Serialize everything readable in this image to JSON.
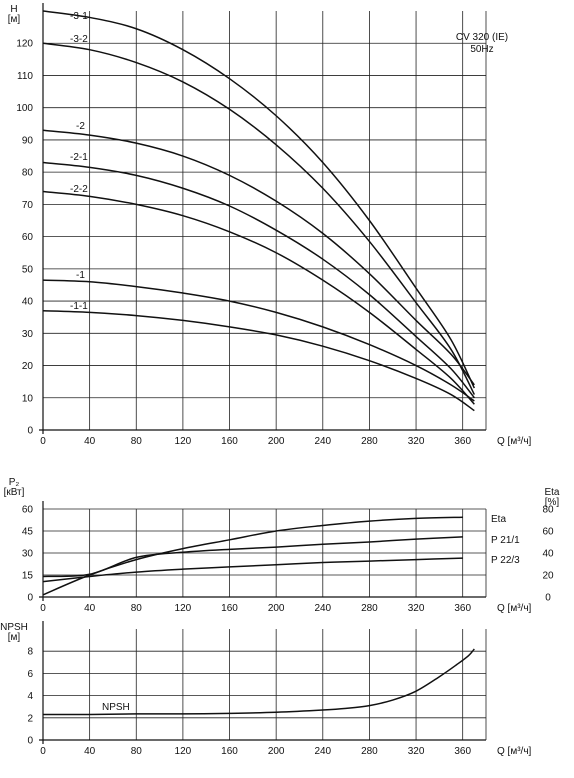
{
  "chart_data": [
    {
      "type": "line",
      "ylabel": "H",
      "yunit": "[м]",
      "xlabel": "Q",
      "xunit": "[м³/ч]",
      "info_lines": [
        "CV 320 (IE)",
        "50Hz"
      ],
      "xlim": [
        0,
        380
      ],
      "ylim": [
        0,
        130
      ],
      "xticks": [
        0,
        40,
        80,
        120,
        160,
        200,
        240,
        280,
        320,
        360
      ],
      "yticks": [
        0,
        10,
        20,
        30,
        40,
        50,
        60,
        70,
        80,
        90,
        100,
        110,
        120
      ],
      "grid": true,
      "series": [
        {
          "name": "-3-1",
          "x": [
            0,
            40,
            80,
            120,
            160,
            200,
            240,
            280,
            320,
            350,
            370
          ],
          "y": [
            130,
            128,
            124.5,
            118,
            109,
            97.5,
            83,
            65,
            44,
            28,
            13
          ]
        },
        {
          "name": "-3-2",
          "x": [
            0,
            40,
            80,
            120,
            160,
            200,
            240,
            280,
            320,
            350,
            370
          ],
          "y": [
            120,
            118,
            114,
            108,
            99.5,
            88.5,
            75,
            58.5,
            39.5,
            25,
            11
          ]
        },
        {
          "name": "-2",
          "x": [
            0,
            40,
            80,
            120,
            160,
            200,
            240,
            280,
            320,
            350,
            370
          ],
          "y": [
            93,
            91.5,
            89,
            85,
            79,
            71,
            61,
            48.5,
            34,
            23.5,
            14
          ]
        },
        {
          "name": "-2-1",
          "x": [
            0,
            40,
            80,
            120,
            160,
            200,
            240,
            280,
            320,
            350,
            370
          ],
          "y": [
            83,
            81.5,
            79,
            75,
            69.5,
            62,
            53,
            42,
            29,
            19,
            10
          ]
        },
        {
          "name": "-2-2",
          "x": [
            0,
            40,
            80,
            120,
            160,
            200,
            240,
            280,
            320,
            350,
            370
          ],
          "y": [
            74,
            72.5,
            70,
            66.5,
            61.5,
            55,
            46.5,
            36.5,
            25,
            16,
            8
          ]
        },
        {
          "name": "-1",
          "x": [
            0,
            40,
            80,
            120,
            160,
            200,
            240,
            280,
            320,
            350,
            370
          ],
          "y": [
            46.5,
            46,
            44.5,
            42.5,
            40,
            36.5,
            32,
            26.5,
            20,
            14,
            9
          ]
        },
        {
          "name": "-1-1",
          "x": [
            0,
            40,
            80,
            120,
            160,
            200,
            240,
            280,
            320,
            350,
            370
          ],
          "y": [
            37,
            36.5,
            35.5,
            34,
            32,
            29.5,
            26,
            21.5,
            16,
            11,
            6
          ]
        }
      ]
    },
    {
      "type": "line",
      "ylabel": "P₂",
      "yunit": "[кВт]",
      "y2label": "Eta",
      "y2unit": "[%]",
      "xlabel": "Q",
      "xunit": "[м³/ч]",
      "xlim": [
        0,
        380
      ],
      "ylim": [
        0,
        60
      ],
      "y2lim": [
        0,
        80
      ],
      "xticks": [
        0,
        40,
        80,
        120,
        160,
        200,
        240,
        280,
        320,
        360
      ],
      "yticks": [
        0,
        15,
        30,
        45,
        60
      ],
      "y2ticks": [
        0,
        20,
        40,
        60,
        80
      ],
      "grid": true,
      "series": [
        {
          "name": "Eta",
          "axis": "right",
          "x": [
            0,
            40,
            80,
            120,
            160,
            200,
            240,
            280,
            320,
            360
          ],
          "y": [
            2,
            20,
            34,
            44,
            52,
            60,
            65,
            69,
            71.5,
            72.5
          ]
        },
        {
          "name": "P 21/1",
          "axis": "left",
          "x": [
            0,
            40,
            80,
            120,
            160,
            200,
            240,
            280,
            320,
            360
          ],
          "y": [
            14,
            15.5,
            27,
            30.5,
            32.5,
            34,
            36,
            37.5,
            39.5,
            41
          ]
        },
        {
          "name": "P 22/3",
          "axis": "left",
          "x": [
            0,
            40,
            80,
            120,
            160,
            200,
            240,
            280,
            320,
            360
          ],
          "y": [
            10.5,
            14,
            17,
            19,
            20.5,
            22,
            23.5,
            24.5,
            25.5,
            26.5
          ]
        }
      ]
    },
    {
      "type": "line",
      "ylabel": "NPSH",
      "yunit": "[м]",
      "xlabel": "Q",
      "xunit": "[м³/ч]",
      "xlim": [
        0,
        380
      ],
      "ylim": [
        0,
        10
      ],
      "xticks": [
        0,
        40,
        80,
        120,
        160,
        200,
        240,
        280,
        320,
        360
      ],
      "yticks": [
        0,
        2,
        4,
        6,
        8
      ],
      "grid": true,
      "series": [
        {
          "name": "NPSH",
          "x": [
            0,
            40,
            80,
            120,
            160,
            200,
            240,
            260,
            280,
            300,
            320,
            340,
            355,
            365,
            370
          ],
          "y": [
            2.3,
            2.3,
            2.35,
            2.35,
            2.4,
            2.5,
            2.7,
            2.85,
            3.1,
            3.6,
            4.4,
            5.7,
            6.8,
            7.6,
            8.2
          ]
        }
      ]
    }
  ]
}
